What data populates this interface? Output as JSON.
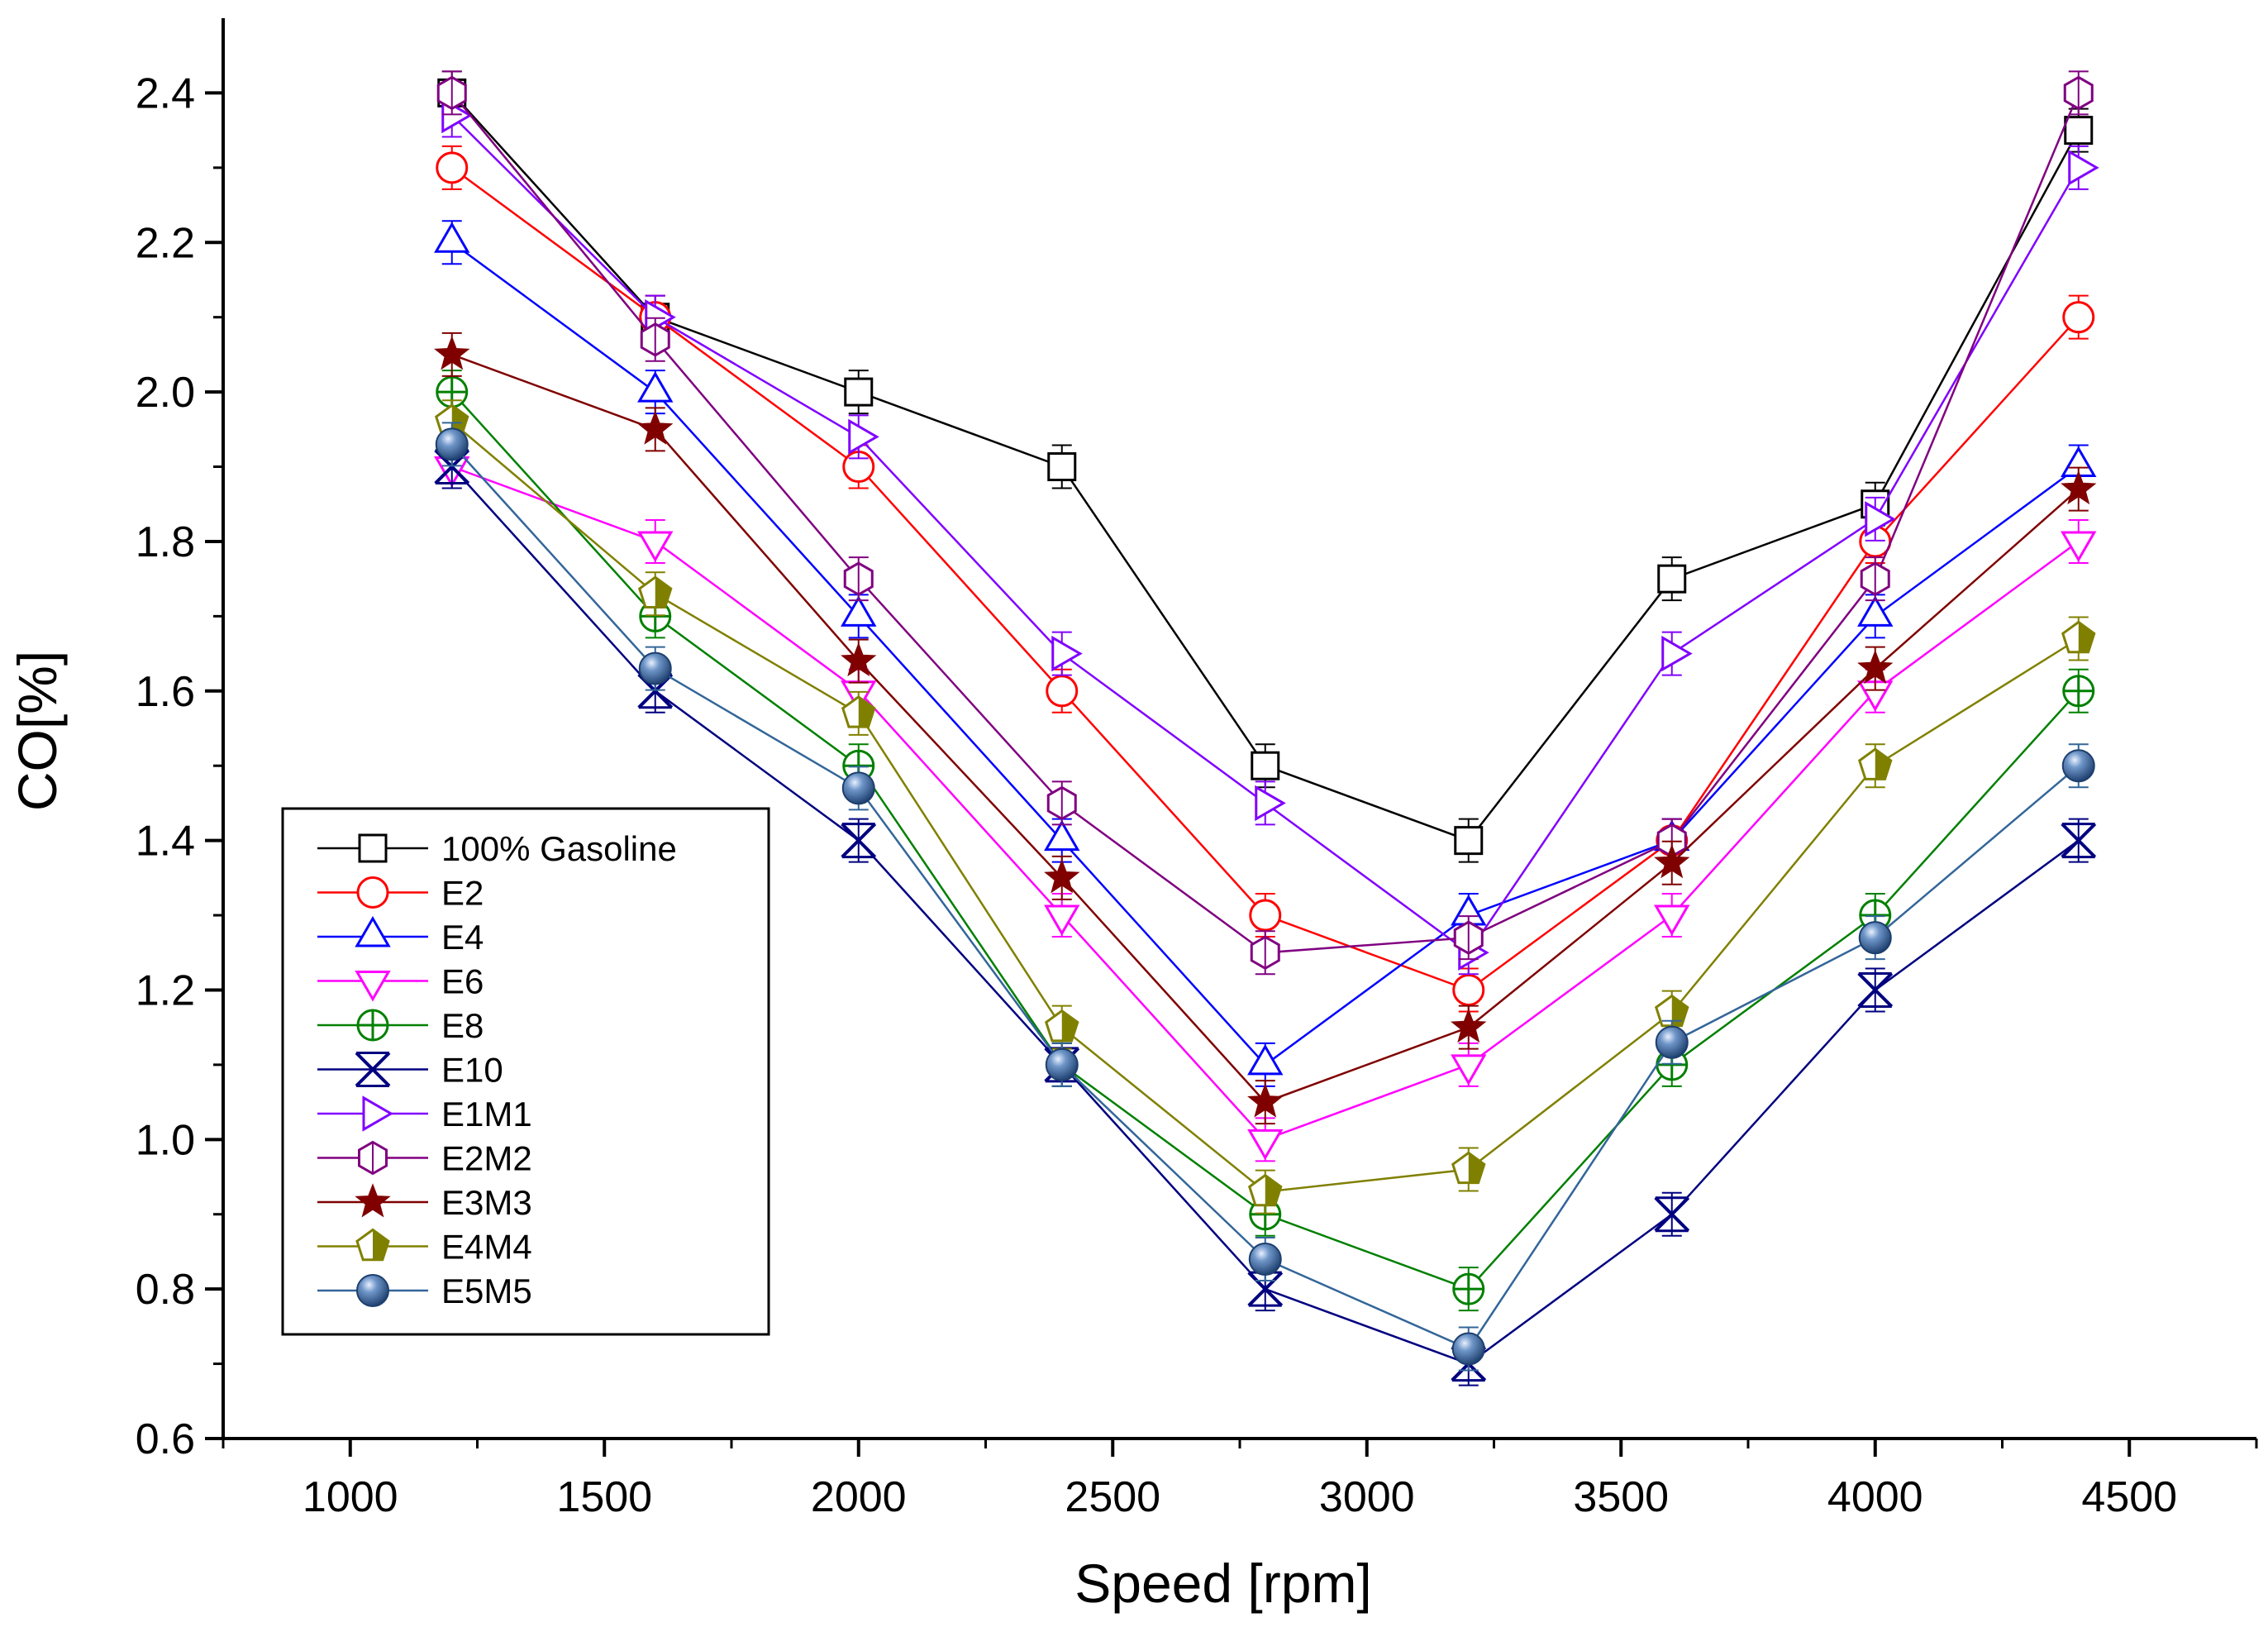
{
  "chart_data": {
    "type": "line",
    "title": "",
    "xlabel": "Speed [rpm]",
    "ylabel": "CO[%]",
    "xlim": [
      750,
      4750
    ],
    "ylim": [
      0.6,
      2.5
    ],
    "xticks": [
      1000,
      1500,
      2000,
      2500,
      3000,
      3500,
      4000,
      4500
    ],
    "xtick_labels": [
      "1000",
      "1500",
      "2000",
      "2500",
      "3000",
      "3500",
      "4000",
      "4500"
    ],
    "yticks": [
      0.6,
      0.8,
      1.0,
      1.2,
      1.4,
      1.6,
      1.8,
      2.0,
      2.2,
      2.4
    ],
    "ytick_labels": [
      "0.6",
      "0.8",
      "1.0",
      "1.2",
      "1.4",
      "1.6",
      "1.8",
      "2.0",
      "2.2",
      "2.4"
    ],
    "grid": false,
    "legend_position": "bottom-left",
    "x": [
      1200,
      1600,
      2000,
      2400,
      2800,
      3200,
      3600,
      4000,
      4400
    ],
    "series": [
      {
        "name": "100% Gasoline",
        "color": "#000000",
        "marker": "square",
        "values": [
          2.4,
          2.1,
          2.0,
          1.9,
          1.5,
          1.4,
          1.75,
          1.85,
          2.35
        ]
      },
      {
        "name": "E2",
        "color": "#ff0000",
        "marker": "circle",
        "values": [
          2.3,
          2.1,
          1.9,
          1.6,
          1.3,
          1.2,
          1.4,
          1.8,
          2.1
        ]
      },
      {
        "name": "E4",
        "color": "#0000ff",
        "marker": "triangle-up",
        "values": [
          2.2,
          2.0,
          1.7,
          1.4,
          1.1,
          1.3,
          1.4,
          1.7,
          1.9
        ]
      },
      {
        "name": "E6",
        "color": "#ff00ff",
        "marker": "triangle-down",
        "values": [
          1.9,
          1.8,
          1.6,
          1.3,
          1.0,
          1.1,
          1.3,
          1.6,
          1.8
        ]
      },
      {
        "name": "E8",
        "color": "#008000",
        "marker": "circle-plus",
        "values": [
          2.0,
          1.7,
          1.5,
          1.1,
          0.9,
          0.8,
          1.1,
          1.3,
          1.6
        ]
      },
      {
        "name": "E10",
        "color": "#000080",
        "marker": "cross",
        "values": [
          1.9,
          1.6,
          1.4,
          1.1,
          0.8,
          0.7,
          0.9,
          1.2,
          1.4
        ]
      },
      {
        "name": "E1M1",
        "color": "#8000ff",
        "marker": "triangle-right",
        "values": [
          2.37,
          2.1,
          1.94,
          1.65,
          1.45,
          1.25,
          1.65,
          1.83,
          2.3
        ]
      },
      {
        "name": "E2M2",
        "color": "#800080",
        "marker": "hexagon",
        "values": [
          2.4,
          2.07,
          1.75,
          1.45,
          1.25,
          1.27,
          1.4,
          1.75,
          2.4
        ]
      },
      {
        "name": "E3M3",
        "color": "#800000",
        "marker": "star",
        "values": [
          2.05,
          1.95,
          1.64,
          1.35,
          1.05,
          1.15,
          1.37,
          1.63,
          1.87
        ]
      },
      {
        "name": "E4M4",
        "color": "#808000",
        "marker": "pentagon",
        "values": [
          1.96,
          1.73,
          1.57,
          1.15,
          0.93,
          0.96,
          1.17,
          1.5,
          1.67
        ]
      },
      {
        "name": "E5M5",
        "color": "#336699",
        "marker": "ball",
        "values": [
          1.93,
          1.63,
          1.47,
          1.1,
          0.84,
          0.72,
          1.13,
          1.27,
          1.5
        ]
      }
    ]
  }
}
